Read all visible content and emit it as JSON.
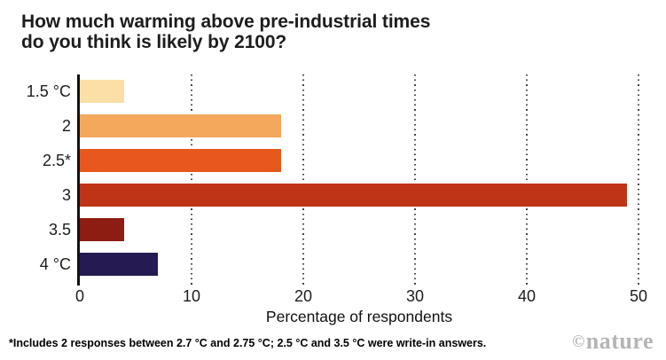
{
  "title": {
    "lines": [
      "How much warming above pre-industrial times",
      "do you think is likely by 2100?"
    ]
  },
  "chart_data": {
    "type": "bar",
    "orientation": "horizontal",
    "title": "How much warming above pre-industrial times do you think is likely by 2100?",
    "categories": [
      "1.5 °C",
      "2",
      "2.5*",
      "3",
      "3.5",
      "4 °C"
    ],
    "values": [
      4,
      18,
      18,
      49,
      4,
      7
    ],
    "bar_colors": [
      "#FBDFA7",
      "#F3A85B",
      "#E6581D",
      "#BF3417",
      "#8D1C12",
      "#251B52"
    ],
    "xlabel": "Percentage of respondents",
    "ylabel": "",
    "xlim": [
      0,
      50
    ],
    "xticks": [
      0,
      10,
      20,
      30,
      40,
      50
    ],
    "grid": "dotted-vertical-gridlines",
    "legend": "none"
  },
  "footnote": "*Includes 2 responses between 2.7 °C and 2.75 °C; 2.5 °C and 3.5 °C were write-in answers.",
  "logo": {
    "copyright": "©",
    "name": "nature"
  }
}
